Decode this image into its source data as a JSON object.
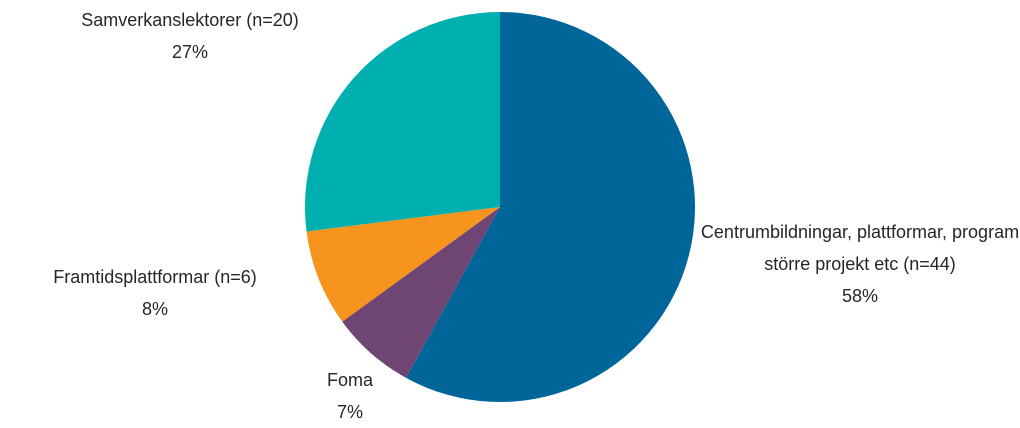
{
  "chart_data": {
    "type": "pie",
    "categories": [
      "Centrumbildningar, plattformar, program större projekt etc (n=44)",
      "Foma",
      "Framtidsplattformar (n=6)",
      "Samverkanslektorer (n=20)"
    ],
    "values": [
      58,
      7,
      8,
      27
    ],
    "value_labels": [
      "58%",
      "7%",
      "8%",
      "27%"
    ],
    "colors": [
      "#00669a",
      "#6e4573",
      "#f7941d",
      "#00b0b0"
    ]
  }
}
